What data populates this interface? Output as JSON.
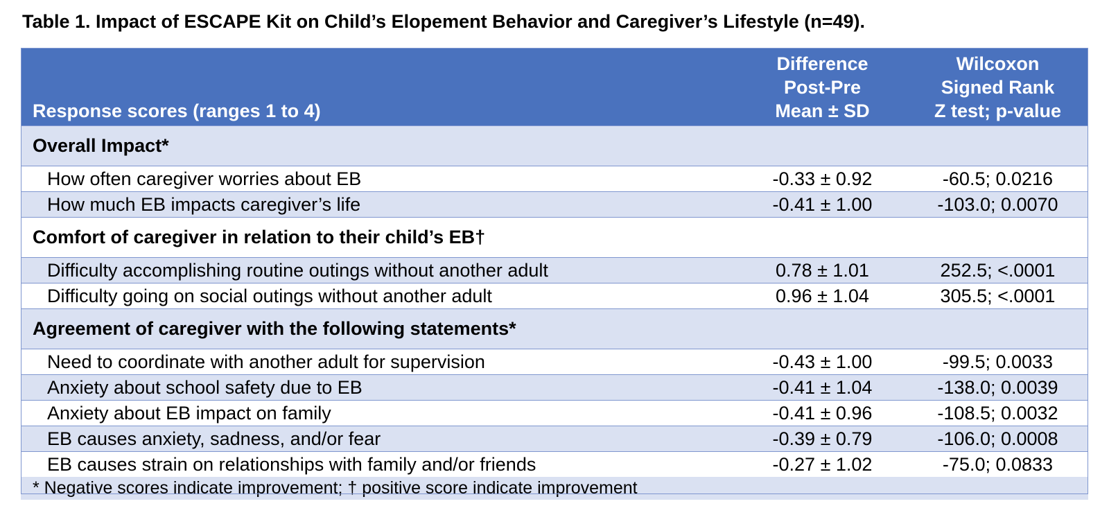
{
  "caption": "Table 1. Impact of ESCAPE Kit on Child’s Elopement Behavior and Caregiver’s Lifestyle (n=49).",
  "header": {
    "col1": "Response scores (ranges 1 to 4)",
    "col2": [
      "Difference",
      "Post-Pre",
      "Mean ± SD"
    ],
    "col3": [
      "Wilcoxon",
      "Signed Rank",
      "Z test; p-value"
    ]
  },
  "sections": [
    {
      "title": "Overall Impact*",
      "rows": [
        {
          "label": "How often caregiver worries about EB",
          "diff": "-0.33 ± 0.92",
          "wilcoxon": "-60.5; 0.0216"
        },
        {
          "label": "How much EB impacts caregiver’s life",
          "diff": "-0.41 ± 1.00",
          "wilcoxon": "-103.0; 0.0070"
        }
      ]
    },
    {
      "title": "Comfort of caregiver in relation to their child’s EB†",
      "rows": [
        {
          "label": "Difficulty accomplishing routine outings without another adult",
          "diff": "0.78 ± 1.01",
          "wilcoxon": "252.5; <.0001"
        },
        {
          "label": "Difficulty going on social outings without another adult",
          "diff": "0.96 ± 1.04",
          "wilcoxon": "305.5; <.0001"
        }
      ]
    },
    {
      "title": "Agreement of caregiver with the following statements*",
      "rows": [
        {
          "label": "Need to coordinate with another adult for supervision",
          "diff": "-0.43 ± 1.00",
          "wilcoxon": "-99.5; 0.0033"
        },
        {
          "label": "Anxiety about school safety due to EB",
          "diff": "-0.41 ± 1.04",
          "wilcoxon": "-138.0; 0.0039"
        },
        {
          "label": "Anxiety about EB impact on family",
          "diff": "-0.41 ± 0.96",
          "wilcoxon": "-108.5; 0.0032"
        },
        {
          "label": "EB causes anxiety, sadness, and/or fear",
          "diff": "-0.39 ± 0.79",
          "wilcoxon": "-106.0; 0.0008"
        },
        {
          "label": "EB causes strain on relationships with family and/or friends",
          "diff": "-0.27 ± 1.02",
          "wilcoxon": "-75.0; 0.0833"
        }
      ]
    }
  ],
  "footnote": "* Negative scores indicate improvement; † positive score indicate improvement"
}
